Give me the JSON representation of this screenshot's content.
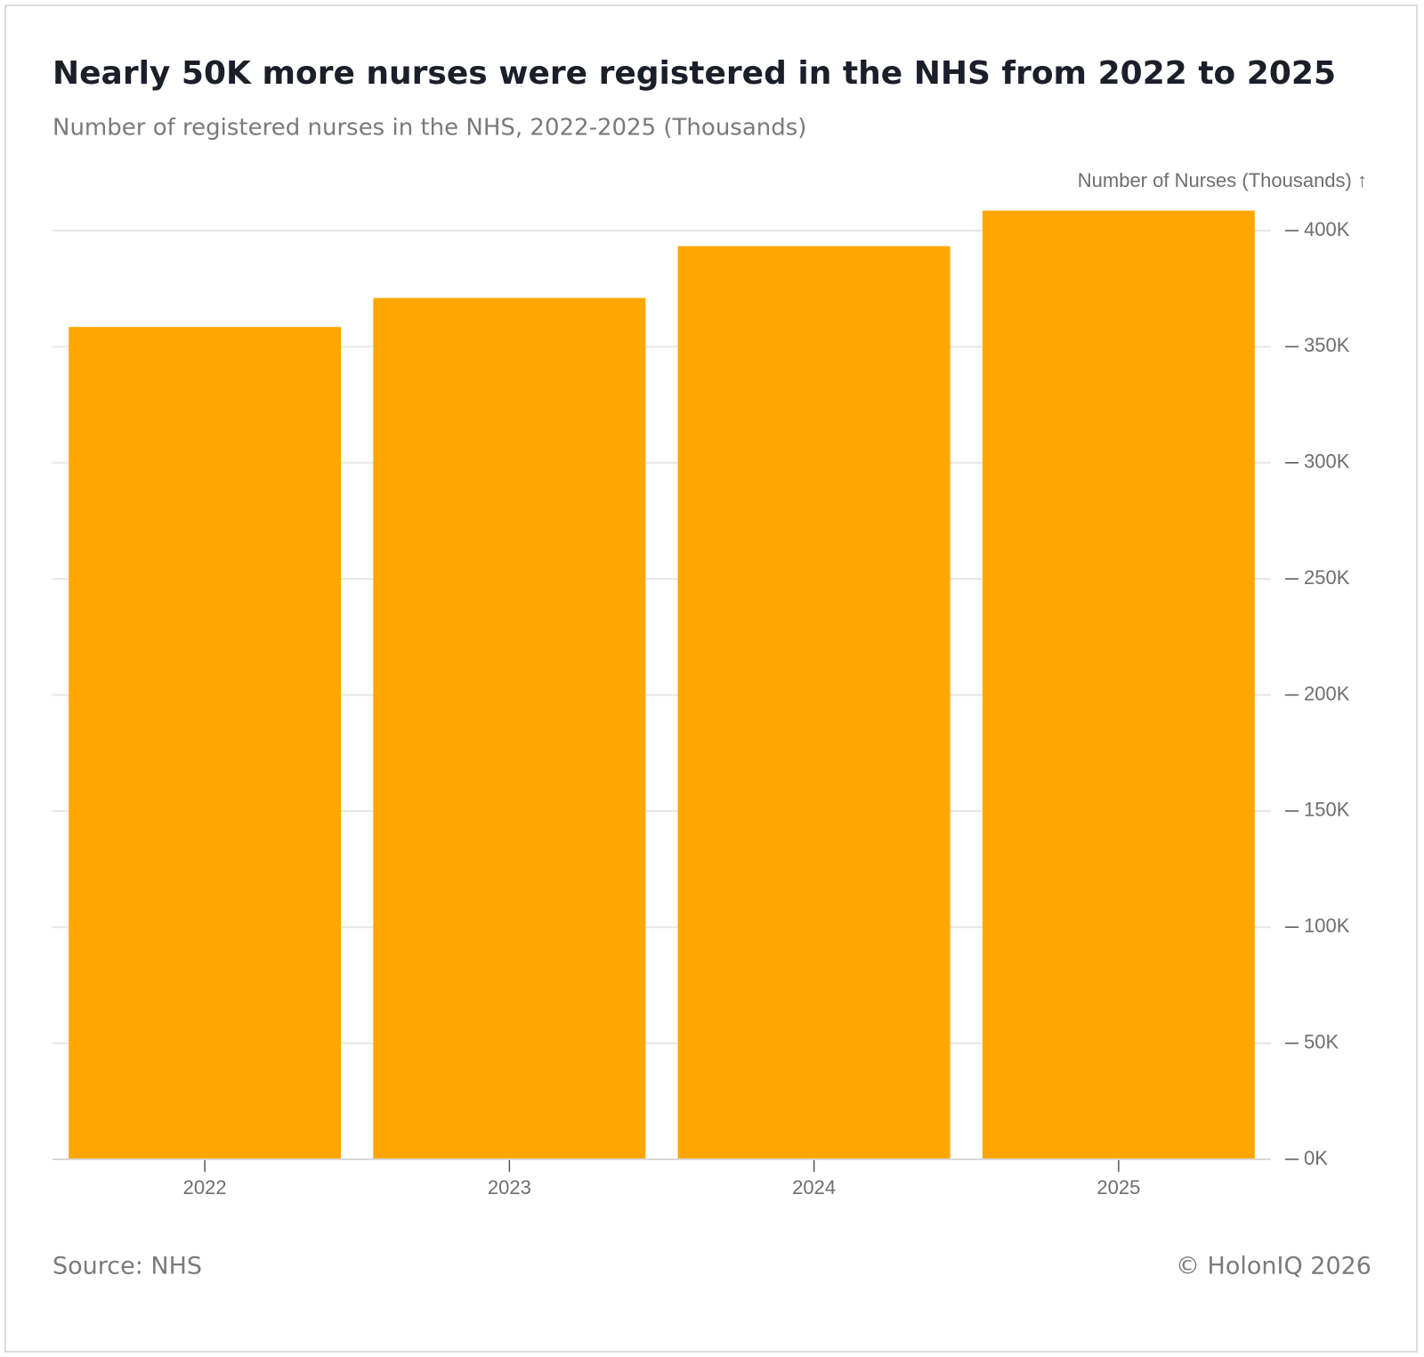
{
  "chart_data": {
    "type": "bar",
    "title": "Nearly 50K more nurses were registered in the NHS from 2022 to 2025",
    "subtitle": "Number of registered nurses in the NHS, 2022-2025 (Thousands)",
    "y_axis_label": "Number of Nurses (Thousands) ↑",
    "categories": [
      "2022",
      "2023",
      "2024",
      "2025"
    ],
    "values": [
      358.5,
      371,
      393.3,
      408.6
    ],
    "color": "#ffa600",
    "ylim": [
      0,
      400
    ],
    "yticks": [
      {
        "value": 0,
        "label": "0K"
      },
      {
        "value": 50,
        "label": "50K"
      },
      {
        "value": 100,
        "label": "100K"
      },
      {
        "value": 150,
        "label": "150K"
      },
      {
        "value": 200,
        "label": "200K"
      },
      {
        "value": 250,
        "label": "250K"
      },
      {
        "value": 300,
        "label": "300K"
      },
      {
        "value": 350,
        "label": "350K"
      },
      {
        "value": 400,
        "label": "400K"
      }
    ],
    "grid": true,
    "source": "Source: NHS",
    "credit": "© HolonIQ 2026"
  }
}
